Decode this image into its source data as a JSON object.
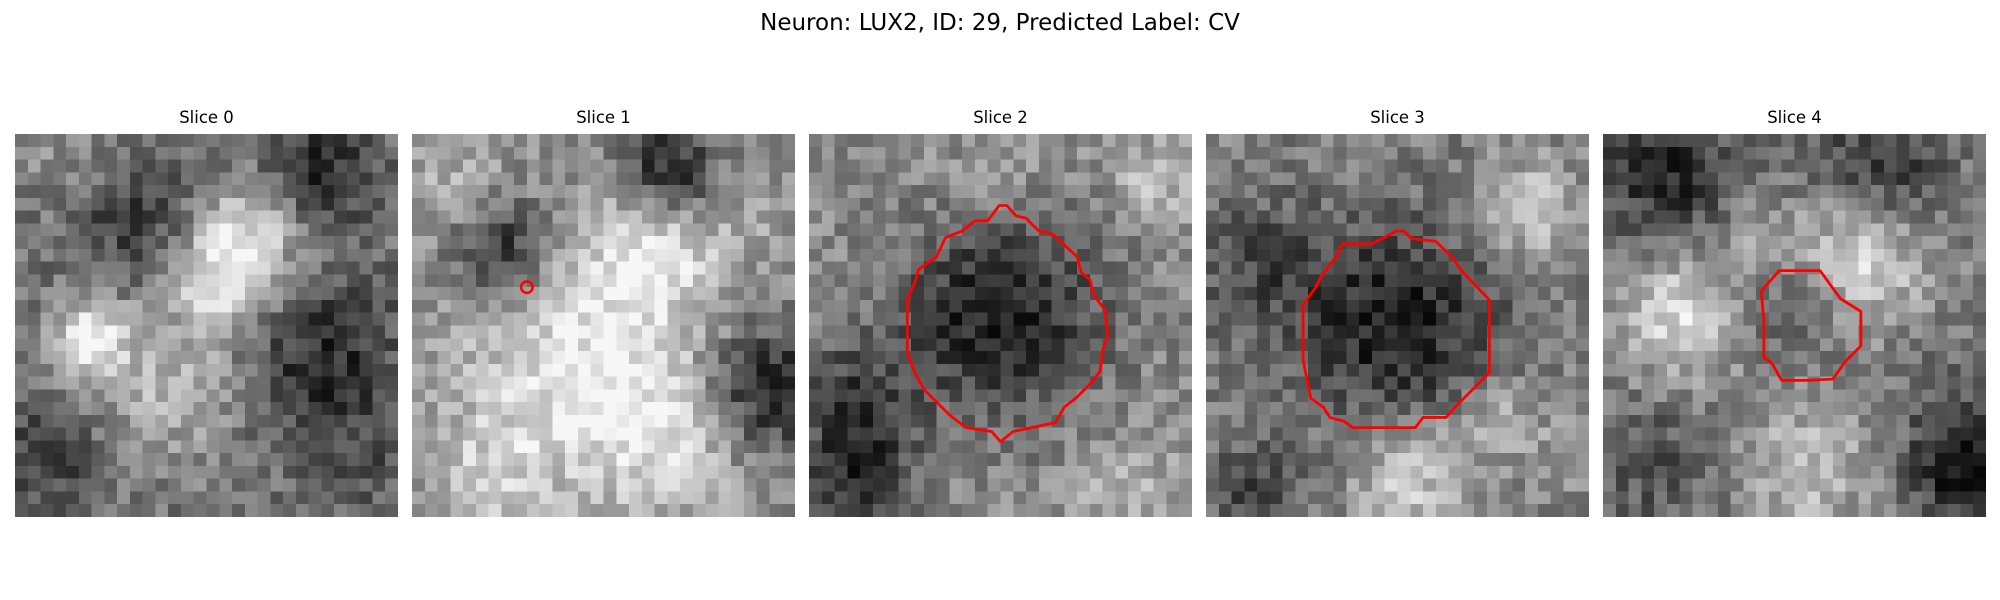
{
  "figure": {
    "title": "Neuron: LUX2, ID: 29, Predicted Label: CV",
    "panels": [
      {
        "title": "Slice 0",
        "seed": 11,
        "annotation": "none"
      },
      {
        "title": "Slice 1",
        "seed": 23,
        "annotation": "marker"
      },
      {
        "title": "Slice 2",
        "seed": 37,
        "annotation": "contour"
      },
      {
        "title": "Slice 3",
        "seed": 41,
        "annotation": "contour"
      },
      {
        "title": "Slice 4",
        "seed": 59,
        "annotation": "contour"
      }
    ],
    "contour_color": "#ff0000",
    "colormap": "gray"
  }
}
